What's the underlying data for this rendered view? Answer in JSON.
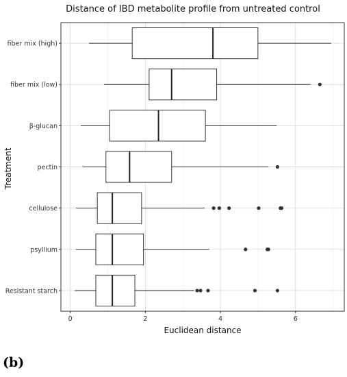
{
  "chart_data": {
    "type": "boxplot",
    "title": "Distance of IBD metabolite profile from untreated control",
    "xlabel": "Euclidean distance",
    "ylabel": "Treatment",
    "xlim": [
      -0.25,
      7.3
    ],
    "xticks": [
      0,
      2,
      4,
      6
    ],
    "grid": true,
    "categories": [
      "fiber mix (high)",
      "fiber mix (low)",
      "β-glucan",
      "pectin",
      "cellulose",
      "psyllium",
      "Resistant starch"
    ],
    "boxes": [
      {
        "category": "fiber mix (high)",
        "whisker_low": 0.5,
        "q1": 1.65,
        "median": 3.8,
        "q3": 5.0,
        "whisker_high": 6.95,
        "outliers": []
      },
      {
        "category": "fiber mix (low)",
        "whisker_low": 0.9,
        "q1": 2.1,
        "median": 2.7,
        "q3": 3.9,
        "whisker_high": 6.4,
        "outliers": [
          6.65
        ]
      },
      {
        "category": "β-glucan",
        "whisker_low": 0.28,
        "q1": 1.05,
        "median": 2.35,
        "q3": 3.6,
        "whisker_high": 5.5,
        "outliers": []
      },
      {
        "category": "pectin",
        "whisker_low": 0.33,
        "q1": 0.95,
        "median": 1.58,
        "q3": 2.7,
        "whisker_high": 5.28,
        "outliers": [
          5.52
        ]
      },
      {
        "category": "cellulose",
        "whisker_low": 0.15,
        "q1": 0.72,
        "median": 1.12,
        "q3": 1.9,
        "whisker_high": 3.58,
        "outliers": [
          3.82,
          3.97,
          4.23,
          5.02,
          5.6,
          5.63
        ]
      },
      {
        "category": "psyllium",
        "whisker_low": 0.15,
        "q1": 0.68,
        "median": 1.12,
        "q3": 1.95,
        "whisker_high": 3.7,
        "outliers": [
          4.67,
          5.25,
          5.28
        ]
      },
      {
        "category": "Resistant starch",
        "whisker_low": 0.12,
        "q1": 0.68,
        "median": 1.12,
        "q3": 1.72,
        "whisker_high": 3.3,
        "outliers": [
          3.38,
          3.47,
          3.67,
          4.92,
          5.52
        ]
      }
    ]
  },
  "panel_label": "(b)"
}
